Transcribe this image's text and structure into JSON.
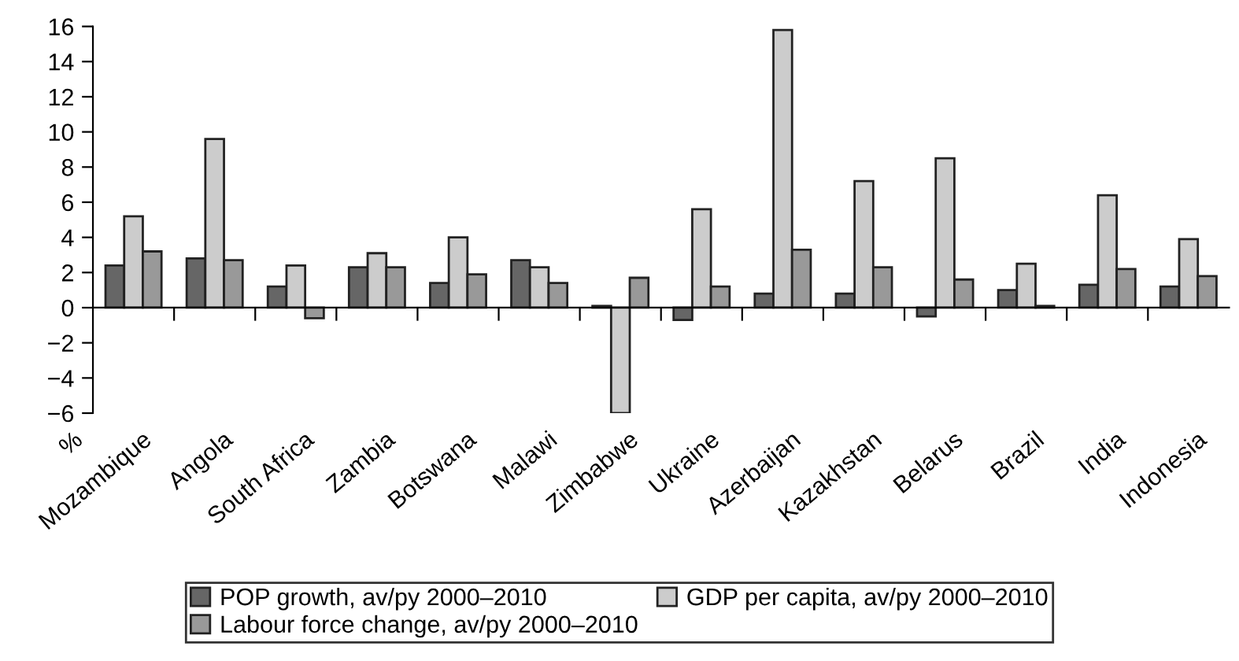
{
  "chart_data": {
    "type": "bar",
    "ylabel": "%",
    "categories": [
      "Mozambique",
      "Angola",
      "South Africa",
      "Zambia",
      "Botswana",
      "Malawi",
      "Zimbabwe",
      "Ukraine",
      "Azerbaijan",
      "Kazakhstan",
      "Belarus",
      "Brazil",
      "India",
      "Indonesia"
    ],
    "series": [
      {
        "name": "POP growth, av/py 2000–2010",
        "color": "#666666",
        "values": [
          2.4,
          2.8,
          1.2,
          2.3,
          1.4,
          2.7,
          0.1,
          -0.7,
          0.8,
          0.8,
          -0.5,
          1.0,
          1.3,
          1.2
        ]
      },
      {
        "name": "GDP per capita, av/py 2000–2010",
        "color": "#cccccc",
        "values": [
          5.2,
          9.6,
          2.4,
          3.1,
          4.0,
          2.3,
          -6.0,
          5.6,
          15.8,
          7.2,
          8.5,
          2.5,
          6.4,
          3.9
        ]
      },
      {
        "name": "Labour force change, av/py 2000–2010",
        "color": "#999999",
        "values": [
          3.2,
          2.7,
          -0.6,
          2.3,
          1.9,
          1.4,
          1.7,
          1.2,
          3.3,
          2.3,
          1.6,
          0.1,
          2.2,
          1.8
        ]
      }
    ],
    "ylim": [
      -6,
      16
    ],
    "yticks": [
      {
        "value": -6,
        "label": "−6"
      },
      {
        "value": -4,
        "label": "−4"
      },
      {
        "value": -2,
        "label": "−2"
      },
      0,
      2,
      4,
      6,
      8,
      10,
      12,
      14,
      16
    ],
    "legend": "bottom"
  }
}
